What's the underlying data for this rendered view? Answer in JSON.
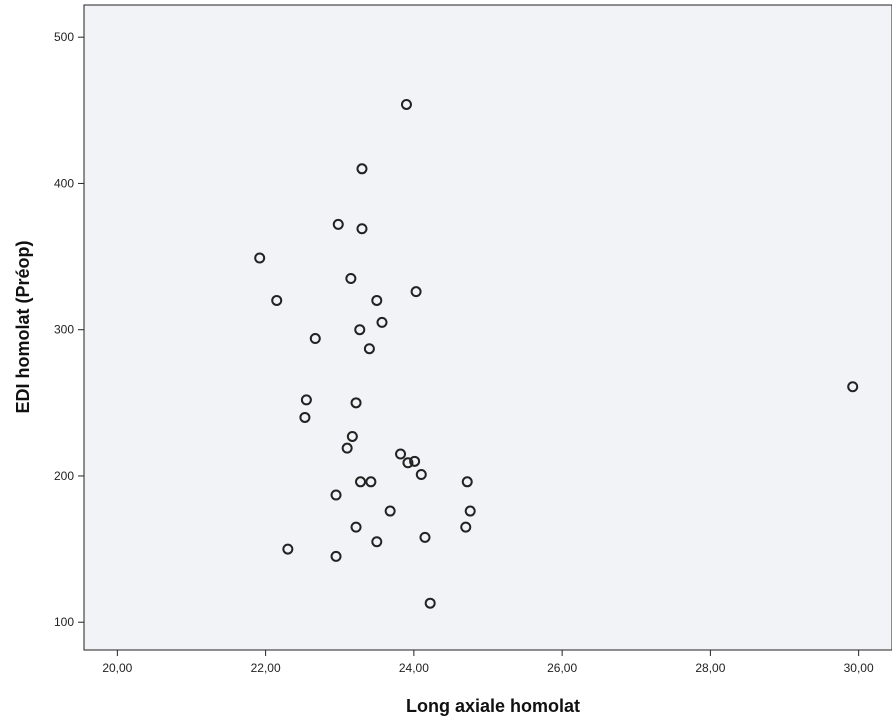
{
  "chart_data": {
    "type": "scatter",
    "title": "",
    "xlabel": "Long axiale homolat",
    "ylabel": "EDI homolat (Préop)",
    "xlim": [
      19.55,
      30.45
    ],
    "ylim": [
      81,
      522
    ],
    "x_ticks": [
      20,
      22,
      24,
      26,
      28,
      30
    ],
    "x_tick_labels": [
      "20,00",
      "22,00",
      "24,00",
      "26,00",
      "28,00",
      "30,00"
    ],
    "y_ticks": [
      100,
      200,
      300,
      400,
      500
    ],
    "y_tick_labels": [
      "100",
      "200",
      "300",
      "400",
      "500"
    ],
    "grid": false,
    "colors": {
      "plot_background": "#f2f3f6",
      "marker_stroke": "#222222",
      "axis": "#222222"
    },
    "marker": "open-circle",
    "points": [
      {
        "x": 23.9,
        "y": 454
      },
      {
        "x": 23.3,
        "y": 410
      },
      {
        "x": 22.98,
        "y": 372
      },
      {
        "x": 23.3,
        "y": 369
      },
      {
        "x": 21.92,
        "y": 349
      },
      {
        "x": 23.15,
        "y": 335
      },
      {
        "x": 24.03,
        "y": 326
      },
      {
        "x": 22.15,
        "y": 320
      },
      {
        "x": 23.5,
        "y": 320
      },
      {
        "x": 23.57,
        "y": 305
      },
      {
        "x": 23.27,
        "y": 300
      },
      {
        "x": 22.67,
        "y": 294
      },
      {
        "x": 23.4,
        "y": 287
      },
      {
        "x": 29.92,
        "y": 261
      },
      {
        "x": 22.55,
        "y": 252
      },
      {
        "x": 23.22,
        "y": 250
      },
      {
        "x": 22.53,
        "y": 240
      },
      {
        "x": 23.17,
        "y": 227
      },
      {
        "x": 23.1,
        "y": 219
      },
      {
        "x": 23.82,
        "y": 215
      },
      {
        "x": 23.92,
        "y": 209
      },
      {
        "x": 24.01,
        "y": 210
      },
      {
        "x": 24.1,
        "y": 201
      },
      {
        "x": 23.28,
        "y": 196
      },
      {
        "x": 23.42,
        "y": 196
      },
      {
        "x": 24.72,
        "y": 196
      },
      {
        "x": 22.95,
        "y": 187
      },
      {
        "x": 23.68,
        "y": 176
      },
      {
        "x": 24.76,
        "y": 176
      },
      {
        "x": 23.22,
        "y": 165
      },
      {
        "x": 24.7,
        "y": 165
      },
      {
        "x": 24.15,
        "y": 158
      },
      {
        "x": 23.5,
        "y": 155
      },
      {
        "x": 22.3,
        "y": 150
      },
      {
        "x": 22.95,
        "y": 145
      },
      {
        "x": 24.22,
        "y": 113
      }
    ]
  }
}
